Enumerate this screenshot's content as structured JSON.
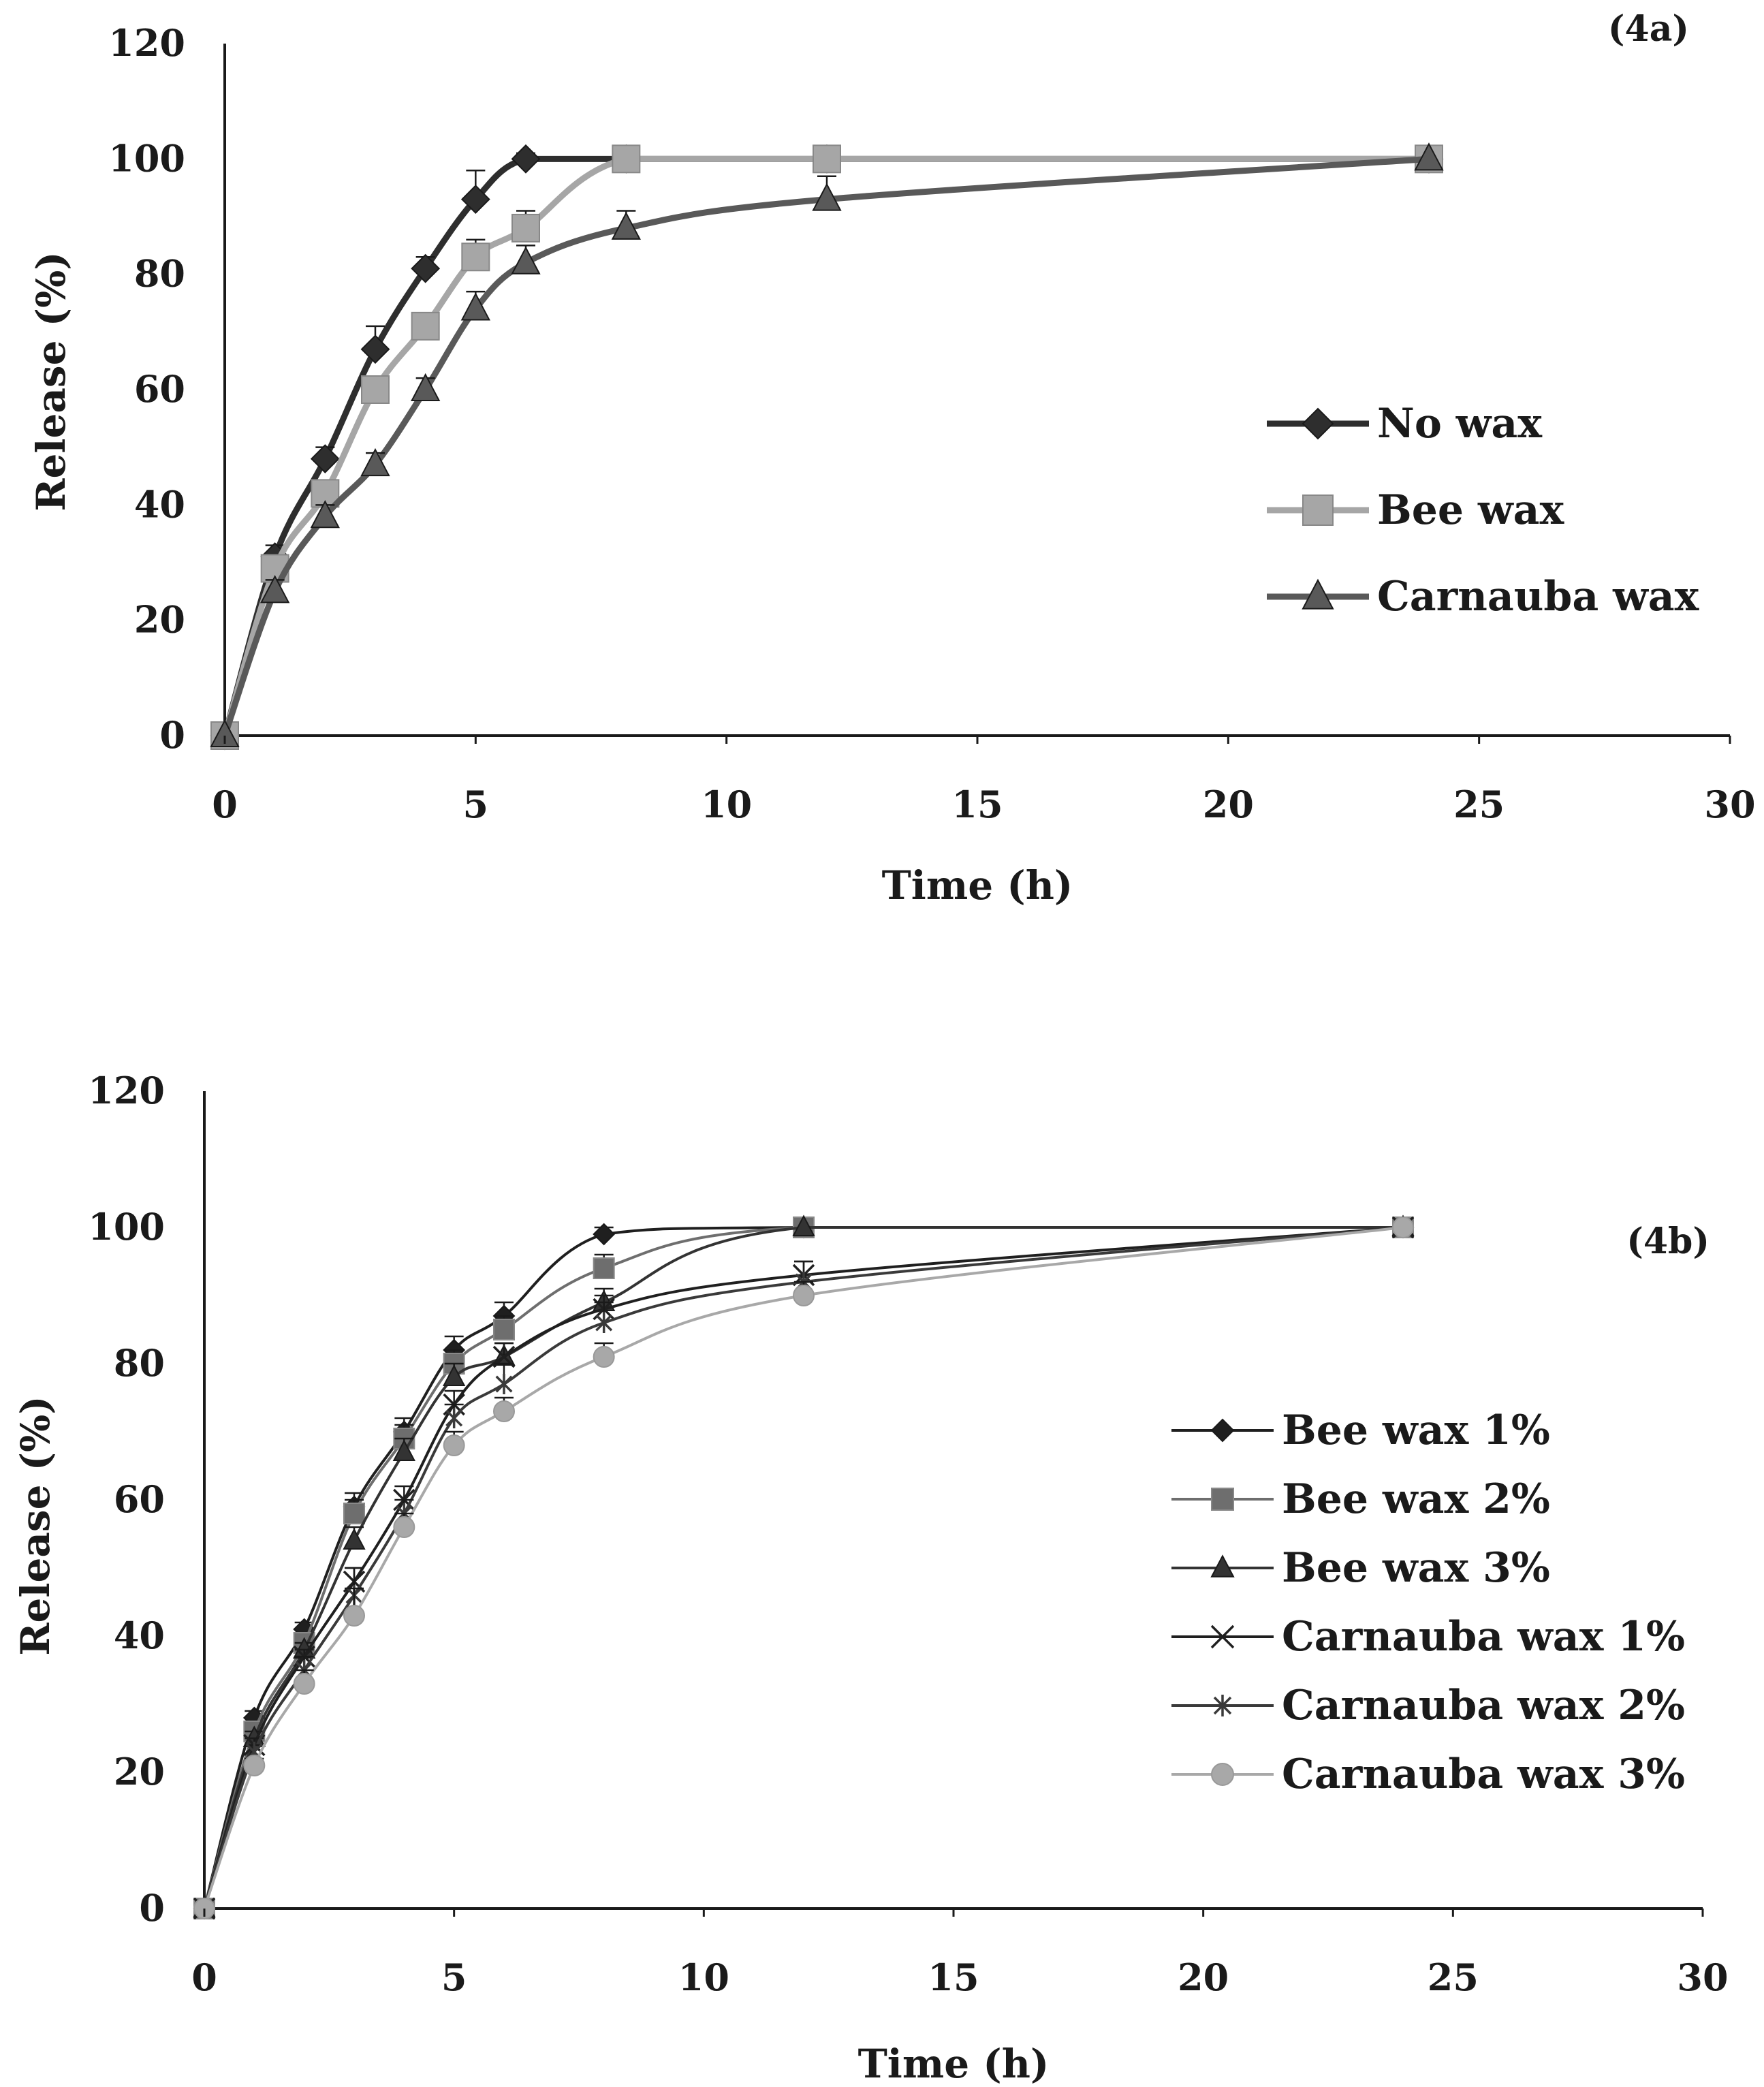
{
  "chart_data": [
    {
      "type": "line",
      "panel_label": "(4a)",
      "xlabel": "Time  (h)",
      "ylabel": "Release  (%)",
      "xlim": [
        0,
        30
      ],
      "ylim": [
        0,
        120
      ],
      "xticks": [
        "0",
        "5",
        "10",
        "15",
        "20",
        "25",
        "30"
      ],
      "yticks": [
        "0",
        "20",
        "40",
        "60",
        "80",
        "100",
        "120"
      ],
      "grid": false,
      "legend_position": "right",
      "series": [
        {
          "name": "No wax",
          "marker": "diamond",
          "color": "#2e2e2e",
          "x": [
            0,
            1,
            2,
            3,
            4,
            5,
            6,
            8,
            12,
            24
          ],
          "y": [
            0,
            31,
            48,
            67,
            81,
            93,
            100,
            100,
            100,
            100
          ],
          "err": [
            0,
            2,
            2,
            4,
            2,
            5,
            1,
            0,
            0,
            0
          ]
        },
        {
          "name": "Bee wax",
          "marker": "square",
          "color": "#a6a6a6",
          "x": [
            0,
            1,
            2,
            3,
            4,
            5,
            6,
            8,
            12,
            24
          ],
          "y": [
            0,
            29,
            42,
            60,
            71,
            83,
            88,
            100,
            100,
            100
          ],
          "err": [
            0,
            2,
            2,
            2,
            2,
            3,
            3,
            0,
            0,
            0
          ]
        },
        {
          "name": "Carnauba wax",
          "marker": "triangle",
          "color": "#595959",
          "x": [
            0,
            1,
            2,
            3,
            4,
            5,
            6,
            8,
            12,
            24
          ],
          "y": [
            0,
            25,
            38,
            47,
            60,
            74,
            82,
            88,
            93,
            100
          ],
          "err": [
            0,
            2,
            2,
            2,
            2,
            3,
            3,
            3,
            4,
            0
          ]
        }
      ]
    },
    {
      "type": "line",
      "panel_label": "(4b)",
      "xlabel": "Time  (h)",
      "ylabel": "Release  (%)",
      "xlim": [
        0,
        30
      ],
      "ylim": [
        0,
        120
      ],
      "xticks": [
        "0",
        "5",
        "10",
        "15",
        "20",
        "25",
        "30"
      ],
      "yticks": [
        "0",
        "20",
        "40",
        "60",
        "80",
        "100",
        "120"
      ],
      "grid": false,
      "legend_position": "right",
      "series": [
        {
          "name": "Bee wax 1%",
          "marker": "diamond",
          "color": "#1f1f1f",
          "x": [
            0,
            1,
            2,
            3,
            4,
            5,
            6,
            8,
            12,
            24
          ],
          "y": [
            0,
            28,
            41,
            59,
            70,
            82,
            87,
            99,
            100,
            100
          ],
          "err": [
            0,
            1,
            1,
            2,
            2,
            2,
            2,
            1,
            0,
            0
          ]
        },
        {
          "name": "Bee wax 2%",
          "marker": "square",
          "color": "#6e6e6e",
          "x": [
            0,
            1,
            2,
            3,
            4,
            5,
            6,
            8,
            12,
            24
          ],
          "y": [
            0,
            26,
            39,
            58,
            69,
            80,
            85,
            94,
            100,
            100
          ],
          "err": [
            0,
            1,
            1,
            2,
            2,
            2,
            2,
            2,
            0,
            0
          ]
        },
        {
          "name": "Bee wax 3%",
          "marker": "triangle",
          "color": "#333333",
          "x": [
            0,
            1,
            2,
            3,
            4,
            5,
            6,
            8,
            12,
            24
          ],
          "y": [
            0,
            25,
            38,
            54,
            67,
            78,
            81,
            89,
            100,
            100
          ],
          "err": [
            0,
            1,
            1,
            2,
            2,
            2,
            2,
            2,
            0,
            0
          ]
        },
        {
          "name": "Carnauba wax 1%",
          "marker": "x",
          "color": "#1f1f1f",
          "x": [
            0,
            1,
            2,
            3,
            4,
            5,
            6,
            8,
            12,
            24
          ],
          "y": [
            0,
            24,
            37,
            48,
            60,
            74,
            81,
            88,
            93,
            100
          ],
          "err": [
            0,
            1,
            1,
            2,
            2,
            2,
            2,
            2,
            2,
            0
          ]
        },
        {
          "name": "Carnauba wax 2%",
          "marker": "star",
          "color": "#3a3a3a",
          "x": [
            0,
            1,
            2,
            3,
            4,
            5,
            6,
            8,
            12,
            24
          ],
          "y": [
            0,
            23,
            35,
            46,
            58,
            72,
            77,
            86,
            92,
            100
          ],
          "err": [
            0,
            1,
            2,
            4,
            2,
            2,
            3,
            3,
            3,
            0
          ]
        },
        {
          "name": "Carnauba wax 3%",
          "marker": "circle",
          "color": "#a8a8a8",
          "x": [
            0,
            1,
            2,
            3,
            4,
            5,
            6,
            8,
            12,
            24
          ],
          "y": [
            0,
            21,
            33,
            43,
            56,
            68,
            73,
            81,
            90,
            100
          ],
          "err": [
            0,
            1,
            2,
            4,
            2,
            2,
            2,
            2,
            2,
            0
          ]
        }
      ]
    }
  ]
}
